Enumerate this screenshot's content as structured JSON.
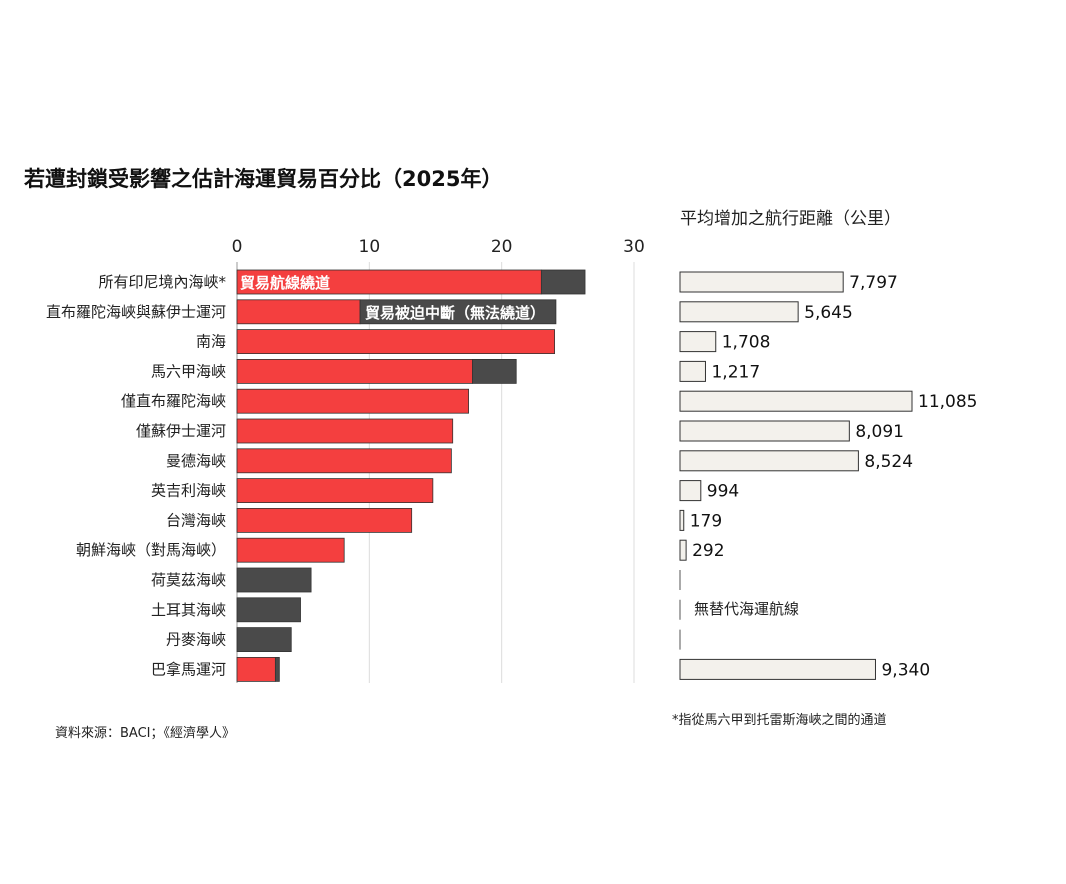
{
  "chart_data": [
    {
      "type": "bar",
      "orientation": "horizontal",
      "stacked": true,
      "title": "若遭封鎖受影響之估計海運貿易百分比（2025年）",
      "categories": [
        "所有印尼境內海峽*",
        "直布羅陀海峽與蘇伊士運河",
        "南海",
        "馬六甲海峽",
        "僅直布羅陀海峽",
        "僅蘇伊士運河",
        "曼德海峽",
        "英吉利海峽",
        "台灣海峽",
        "朝鮮海峽（對馬海峽）",
        "荷莫茲海峽",
        "土耳其海峽",
        "丹麥海峽",
        "巴拿馬運河"
      ],
      "series": [
        {
          "name": "貿易航線繞道",
          "color": "#f43f3f",
          "values": [
            23.0,
            9.3,
            24.0,
            17.8,
            17.5,
            16.3,
            16.2,
            14.8,
            13.2,
            8.1,
            0,
            0,
            0,
            2.9
          ]
        },
        {
          "name": "貿易被迫中斷（無法繞道）",
          "color": "#4a4a4a",
          "values": [
            3.3,
            14.8,
            0,
            3.3,
            0,
            0,
            0,
            0,
            0,
            0,
            5.6,
            4.8,
            4.1,
            0.3
          ]
        }
      ],
      "xlim": [
        0,
        30
      ],
      "xticks": [
        "0",
        "10",
        "20",
        "30"
      ],
      "grid": true
    },
    {
      "type": "bar",
      "orientation": "horizontal",
      "subtitle": "平均增加之航行距離（公里）",
      "values": [
        7797,
        5645,
        1708,
        1217,
        11085,
        8091,
        8524,
        994,
        179,
        292,
        null,
        null,
        null,
        9340
      ],
      "labels": [
        "7,797",
        "5,645",
        "1,708",
        "1,217",
        "11,085",
        "8,091",
        "8,524",
        "994",
        "179",
        "292",
        "",
        "",
        "",
        "9,340"
      ],
      "bar_color": "#f3f1ec",
      "no_alternative_label": "無替代海運航線"
    }
  ],
  "source_note": "資料來源：BACI；《經濟學人》",
  "footnote": "*指從馬六甲到托雷斯海峽之間的通道"
}
